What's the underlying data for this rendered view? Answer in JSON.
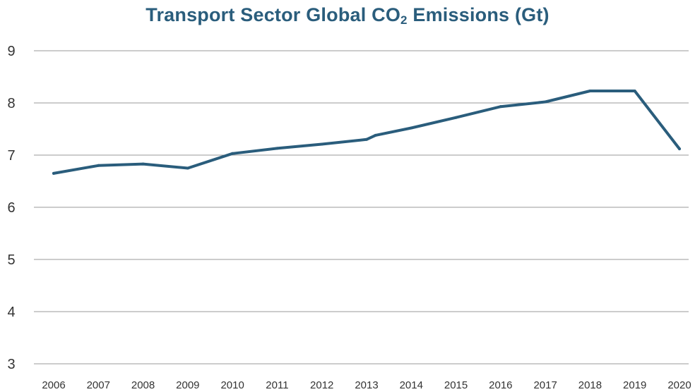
{
  "title": {
    "prefix": "Transport Sector Global CO",
    "subscript": "2",
    "suffix": " Emissions (Gt)"
  },
  "colors": {
    "line": "#2a5d7c",
    "grid": "#9a9a9a",
    "title": "#2a5d7c"
  },
  "chart_data": {
    "type": "line",
    "title": "Transport Sector Global CO2 Emissions (Gt)",
    "xlabel": "",
    "ylabel": "",
    "grid": true,
    "ylim": [
      3,
      9
    ],
    "yticks": [
      3,
      4,
      5,
      6,
      7,
      8,
      9
    ],
    "categories": [
      "2006",
      "2007",
      "2008",
      "2009",
      "2010",
      "2011",
      "2012",
      "2013",
      "2014",
      "2015",
      "2016",
      "2017",
      "2018",
      "2019",
      "2020"
    ],
    "series": [
      {
        "values": [
          6.65,
          6.8,
          6.83,
          6.75,
          7.03,
          7.13,
          7.21,
          7.3,
          7.38,
          7.52,
          7.72,
          7.93,
          8.02,
          8.23,
          8.23,
          7.12
        ],
        "x": [
          2006,
          2007,
          2008,
          2009,
          2010,
          2011,
          2012,
          2013,
          2013.2,
          2014,
          2015,
          2016,
          2017,
          2018,
          2019,
          2020
        ]
      }
    ]
  }
}
